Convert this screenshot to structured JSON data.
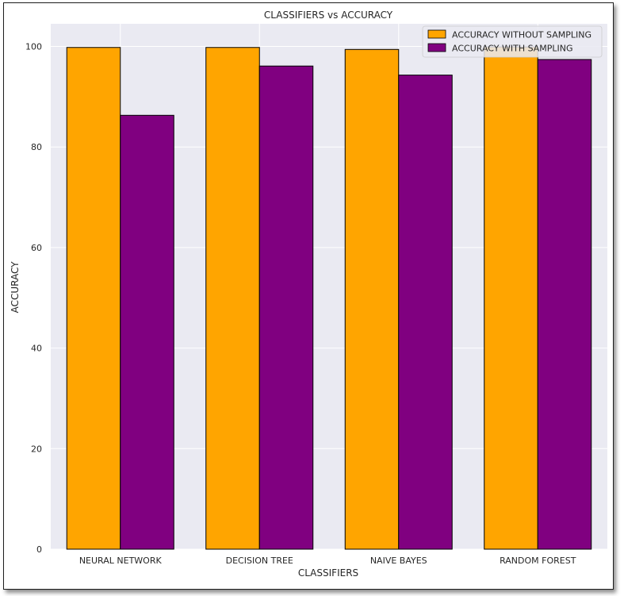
{
  "chart_data": {
    "type": "bar",
    "title": "CLASSIFIERS vs ACCURACY",
    "xlabel": "CLASSIFIERS",
    "ylabel": "ACCURACY",
    "categories": [
      "NEURAL NETWORK",
      "DECISION TREE",
      "NAIVE BAYES",
      "RANDOM FOREST"
    ],
    "series": [
      {
        "name": "ACCURACY WITHOUT SAMPLING",
        "color": "#FFA500",
        "values": [
          99.8,
          99.8,
          99.4,
          99.9
        ]
      },
      {
        "name": "ACCURACY WITH SAMPLING",
        "color": "#800080",
        "values": [
          86.3,
          96.1,
          94.3,
          97.4
        ]
      }
    ],
    "ylim": [
      0,
      104.5
    ],
    "yticks": [
      0,
      20,
      40,
      60,
      80,
      100
    ],
    "grid": true,
    "legend_position": "top-right",
    "background_color": "#EAEAF2"
  }
}
